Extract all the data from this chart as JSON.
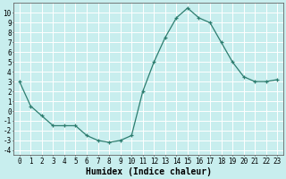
{
  "x": [
    0,
    1,
    2,
    3,
    4,
    5,
    6,
    7,
    8,
    9,
    10,
    11,
    12,
    13,
    14,
    15,
    16,
    17,
    18,
    19,
    20,
    21,
    22,
    23
  ],
  "y": [
    3,
    0.5,
    -0.5,
    -1.5,
    -1.5,
    -1.5,
    -2.5,
    -3,
    -3.2,
    -3,
    -2.5,
    2,
    5,
    7.5,
    9.5,
    10.5,
    9.5,
    9,
    7,
    5,
    3.5,
    3,
    3,
    3.2
  ],
  "line_color": "#2d7d6f",
  "marker": "+",
  "bg_color": "#c8eeee",
  "grid_color": "#ffffff",
  "xlabel": "Humidex (Indice chaleur)",
  "xlabel_fontsize": 7,
  "xlim": [
    -0.5,
    23.5
  ],
  "ylim": [
    -4.5,
    11
  ],
  "yticks": [
    -4,
    -3,
    -2,
    -1,
    0,
    1,
    2,
    3,
    4,
    5,
    6,
    7,
    8,
    9,
    10
  ],
  "xticks": [
    0,
    1,
    2,
    3,
    4,
    5,
    6,
    7,
    8,
    9,
    10,
    11,
    12,
    13,
    14,
    15,
    16,
    17,
    18,
    19,
    20,
    21,
    22,
    23
  ],
  "tick_fontsize": 5.5
}
